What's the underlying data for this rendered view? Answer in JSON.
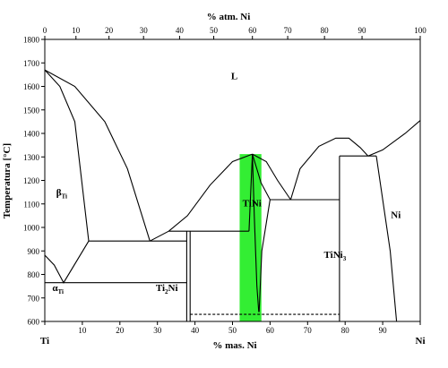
{
  "chart_data": {
    "type": "line",
    "title": "% atm. Ni",
    "xlabel": "% mas. Ni",
    "ylabel": "Temperatura [°C]",
    "xlim": [
      0,
      100
    ],
    "ylim": [
      600,
      1800
    ],
    "x_ticks": [
      0,
      10,
      20,
      30,
      40,
      50,
      60,
      70,
      80,
      90,
      100
    ],
    "y_ticks": [
      600,
      700,
      800,
      900,
      1000,
      1100,
      1200,
      1300,
      1400,
      1500,
      1600,
      1700,
      1800
    ],
    "top_ticks": [
      0,
      10,
      20,
      30,
      40,
      50,
      60,
      70,
      80,
      90,
      100
    ],
    "top_tick_positions": [
      0,
      8.3,
      17.1,
      26.3,
      35.9,
      45.0,
      55.3,
      64.7,
      74.5,
      84.5,
      100
    ],
    "grid": false,
    "end_labels": {
      "left": "Ti",
      "right": "Ni"
    },
    "highlight": {
      "label": "TiNi",
      "x_range": [
        51.9,
        57.7
      ],
      "y_range": [
        600,
        1312
      ],
      "color": "#33ee33"
    },
    "region_labels": [
      {
        "text": "L",
        "x": 50.5,
        "y": 1630
      },
      {
        "text": "β",
        "sub": "Ti",
        "x": 4.5,
        "y": 1135
      },
      {
        "text": "α",
        "sub": "Ti",
        "x": 3.5,
        "y": 730
      },
      {
        "text": "Ti",
        "sub": "2",
        "tail": "Ni",
        "x": 32.5,
        "y": 730
      },
      {
        "text": "TiNi",
        "x": 55.2,
        "y": 1090
      },
      {
        "text": "TiNi",
        "sub": "3",
        "x": 77.3,
        "y": 870
      },
      {
        "text": "Ni",
        "x": 93.5,
        "y": 1040
      }
    ],
    "series": [
      {
        "style": "solid",
        "points": [
          [
            0,
            1670
          ],
          [
            4,
            1600
          ],
          [
            8,
            1450
          ],
          [
            11.7,
            942
          ]
        ]
      },
      {
        "style": "solid",
        "points": [
          [
            0,
            1670
          ],
          [
            8,
            1600
          ],
          [
            16,
            1450
          ],
          [
            22,
            1250
          ],
          [
            28,
            942
          ]
        ]
      },
      {
        "style": "solid",
        "points": [
          [
            11.7,
            942
          ],
          [
            37.8,
            942
          ]
        ]
      },
      {
        "style": "solid",
        "points": [
          [
            28,
            942
          ],
          [
            33,
            984
          ]
        ]
      },
      {
        "style": "solid",
        "points": [
          [
            0,
            882
          ],
          [
            2.5,
            840
          ],
          [
            5,
            765
          ],
          [
            11.7,
            942
          ]
        ]
      },
      {
        "style": "solid",
        "points": [
          [
            0,
            765
          ],
          [
            37.8,
            765
          ]
        ]
      },
      {
        "style": "solid",
        "points": [
          [
            37.8,
            984
          ],
          [
            37.8,
            942
          ],
          [
            37.8,
            600
          ]
        ]
      },
      {
        "style": "solid",
        "points": [
          [
            38.7,
            984
          ],
          [
            38.7,
            600
          ]
        ]
      },
      {
        "style": "solid",
        "points": [
          [
            33,
            984
          ],
          [
            38.7,
            984
          ],
          [
            54.4,
            984
          ]
        ]
      },
      {
        "style": "solid",
        "points": [
          [
            33,
            984
          ],
          [
            38,
            1050
          ],
          [
            44,
            1180
          ],
          [
            50,
            1280
          ],
          [
            55.3,
            1312
          ]
        ]
      },
      {
        "style": "solid",
        "points": [
          [
            55.3,
            1312
          ],
          [
            59,
            1280
          ],
          [
            62,
            1200
          ],
          [
            65.5,
            1118
          ]
        ]
      },
      {
        "style": "solid",
        "points": [
          [
            54.4,
            984
          ],
          [
            55.3,
            1312
          ]
        ]
      },
      {
        "style": "solid",
        "points": [
          [
            55.3,
            1312
          ],
          [
            55.8,
            1050
          ],
          [
            56.5,
            750
          ],
          [
            57,
            640
          ]
        ]
      },
      {
        "style": "solid",
        "points": [
          [
            55.3,
            1312
          ],
          [
            57.6,
            1190
          ],
          [
            60,
            1118
          ]
        ]
      },
      {
        "style": "solid",
        "points": [
          [
            60,
            1118
          ],
          [
            57.8,
            900
          ],
          [
            57.1,
            640
          ]
        ]
      },
      {
        "style": "solid",
        "points": [
          [
            60,
            1118
          ],
          [
            78.5,
            1118
          ]
        ]
      },
      {
        "style": "solid",
        "points": [
          [
            65.5,
            1118
          ],
          [
            68,
            1250
          ],
          [
            73,
            1345
          ],
          [
            77.5,
            1380
          ],
          [
            81,
            1380
          ],
          [
            84,
            1340
          ],
          [
            86.1,
            1304
          ]
        ]
      },
      {
        "style": "solid",
        "points": [
          [
            78.5,
            1304
          ],
          [
            78.5,
            600
          ]
        ]
      },
      {
        "style": "solid",
        "points": [
          [
            78.5,
            1304
          ],
          [
            88.3,
            1304
          ]
        ]
      },
      {
        "style": "solid",
        "points": [
          [
            86.1,
            1304
          ],
          [
            90,
            1330
          ],
          [
            96,
            1400
          ],
          [
            100,
            1455
          ]
        ]
      },
      {
        "style": "solid",
        "points": [
          [
            88.3,
            1304
          ],
          [
            92,
            900
          ],
          [
            93.7,
            600
          ]
        ]
      },
      {
        "style": "dashed",
        "points": [
          [
            38.7,
            630
          ],
          [
            78.5,
            630
          ]
        ]
      }
    ]
  }
}
